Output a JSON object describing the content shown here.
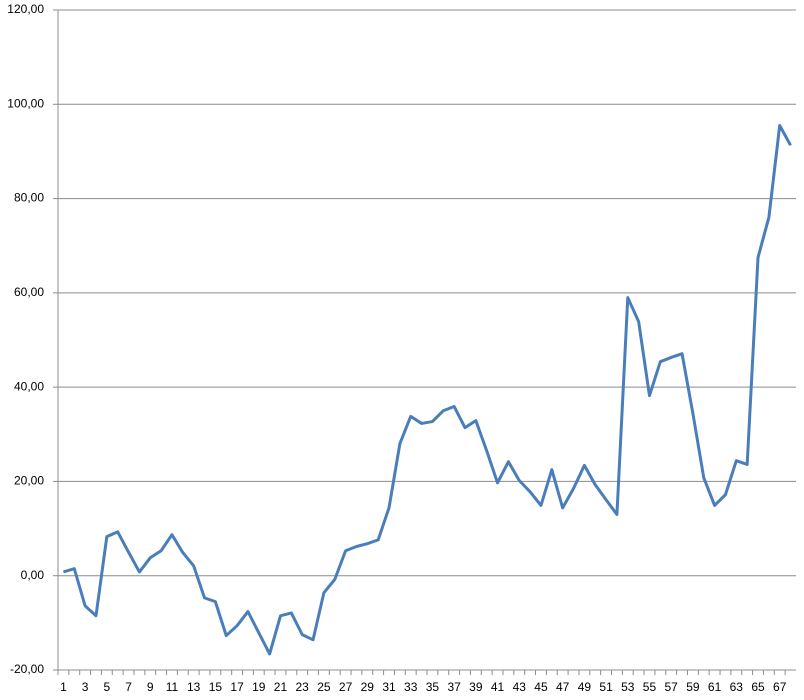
{
  "chart_data": {
    "type": "line",
    "categories": [
      1,
      null,
      3,
      null,
      5,
      null,
      7,
      null,
      9,
      null,
      11,
      null,
      13,
      null,
      15,
      null,
      17,
      null,
      19,
      null,
      21,
      null,
      23,
      null,
      25,
      null,
      27,
      null,
      29,
      null,
      31,
      null,
      33,
      null,
      35,
      null,
      37,
      null,
      39,
      null,
      41,
      null,
      43,
      null,
      45,
      null,
      47,
      null,
      49,
      null,
      51,
      null,
      53,
      null,
      55,
      null,
      57,
      null,
      59,
      null,
      61,
      null,
      63,
      null,
      65,
      null,
      67,
      null
    ],
    "values": [
      0.8,
      1.5,
      -6.4,
      -8.5,
      8.3,
      9.3,
      5.0,
      0.8,
      3.8,
      5.3,
      8.7,
      4.9,
      2.1,
      -4.7,
      -5.5,
      -12.7,
      -10.6,
      -7.6,
      -12.1,
      -16.6,
      -8.5,
      -7.9,
      -12.5,
      -13.6,
      -3.6,
      -0.8,
      5.3,
      6.2,
      6.8,
      7.6,
      14.4,
      28.0,
      33.8,
      32.3,
      32.7,
      35.0,
      35.9,
      31.4,
      32.9,
      26.5,
      19.7,
      24.2,
      20.2,
      17.8,
      14.9,
      22.5,
      14.4,
      18.5,
      23.4,
      19.3,
      16.1,
      13.0,
      59.0,
      53.9,
      38.2,
      45.4,
      46.3,
      47.1,
      34.4,
      20.8,
      14.9,
      17.2,
      24.4,
      23.6,
      67.5,
      76.0,
      95.5,
      91.3
    ],
    "color": "#4a7ebb",
    "ylim": [
      -20,
      120
    ],
    "yticks": [
      {
        "value": -20,
        "label": "-20,00"
      },
      {
        "value": 0,
        "label": "0,00"
      },
      {
        "value": 20,
        "label": "20,00"
      },
      {
        "value": 40,
        "label": "40,00"
      },
      {
        "value": 60,
        "label": "60,00"
      },
      {
        "value": 80,
        "label": "80,00"
      },
      {
        "value": 100,
        "label": "100,00"
      },
      {
        "value": 120,
        "label": "120,00"
      }
    ],
    "grid": true
  }
}
